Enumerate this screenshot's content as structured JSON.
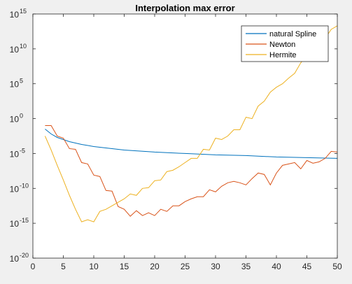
{
  "chart_data": {
    "type": "line",
    "title": "Interpolation max error",
    "xlabel": "",
    "ylabel": "",
    "xlim": [
      0,
      50
    ],
    "ylim_exponent": [
      -20,
      15
    ],
    "y_scale": "log",
    "grid": false,
    "legend_position": "top-right",
    "x_ticks": [
      "0",
      "5",
      "10",
      "15",
      "20",
      "25",
      "30",
      "35",
      "40",
      "45",
      "50"
    ],
    "y_ticks": [
      {
        "base": "10",
        "exp": "-20"
      },
      {
        "base": "10",
        "exp": "-15"
      },
      {
        "base": "10",
        "exp": "-10"
      },
      {
        "base": "10",
        "exp": "-5"
      },
      {
        "base": "10",
        "exp": "0"
      },
      {
        "base": "10",
        "exp": "5"
      },
      {
        "base": "10",
        "exp": "10"
      },
      {
        "base": "10",
        "exp": "15"
      }
    ],
    "series": [
      {
        "name": "natural Spline",
        "color": "#0072bd",
        "x": [
          2,
          3,
          4,
          5,
          6,
          7,
          8,
          10,
          12,
          15,
          20,
          25,
          30,
          35,
          40,
          45,
          50
        ],
        "log10_y": [
          -1.5,
          -2.2,
          -2.7,
          -3.0,
          -3.3,
          -3.5,
          -3.7,
          -4.0,
          -4.2,
          -4.5,
          -4.8,
          -5.0,
          -5.2,
          -5.3,
          -5.5,
          -5.6,
          -5.7
        ]
      },
      {
        "name": "Newton",
        "color": "#d95319",
        "x": [
          2,
          3,
          4,
          5,
          6,
          7,
          8,
          9,
          10,
          11,
          12,
          13,
          14,
          15,
          16,
          17,
          18,
          19,
          20,
          21,
          22,
          23,
          24,
          25,
          26,
          27,
          28,
          29,
          30,
          31,
          32,
          33,
          34,
          35,
          36,
          37,
          38,
          39,
          40,
          41,
          42,
          43,
          44,
          45,
          46,
          47,
          48,
          49,
          50
        ],
        "log10_y": [
          -1.0,
          -1.0,
          -2.5,
          -2.8,
          -4.3,
          -4.4,
          -6.3,
          -6.5,
          -8.1,
          -8.3,
          -10.3,
          -10.4,
          -12.6,
          -13.0,
          -14.0,
          -13.2,
          -13.9,
          -13.5,
          -13.9,
          -13.0,
          -13.3,
          -12.5,
          -12.5,
          -11.9,
          -11.5,
          -11.2,
          -11.2,
          -10.2,
          -10.5,
          -9.7,
          -9.2,
          -9.0,
          -9.2,
          -9.5,
          -8.6,
          -7.8,
          -8.0,
          -9.5,
          -7.8,
          -6.7,
          -6.5,
          -6.3,
          -7.2,
          -6.0,
          -6.4,
          -6.2,
          -5.7,
          -4.7,
          -4.8
        ]
      },
      {
        "name": "Hermite",
        "color": "#edb120",
        "x": [
          2,
          3,
          4,
          5,
          6,
          7,
          8,
          9,
          10,
          11,
          12,
          13,
          14,
          15,
          16,
          17,
          18,
          19,
          20,
          21,
          22,
          23,
          24,
          25,
          26,
          27,
          28,
          29,
          30,
          31,
          32,
          33,
          34,
          35,
          36,
          37,
          38,
          39,
          40,
          41,
          42,
          43,
          44,
          45,
          46,
          47,
          48,
          49,
          50
        ],
        "log10_y": [
          -2.5,
          -4.5,
          -6.7,
          -8.8,
          -11.0,
          -13.0,
          -14.8,
          -14.5,
          -14.8,
          -13.3,
          -13.0,
          -12.5,
          -12.0,
          -11.5,
          -10.8,
          -11.0,
          -10.0,
          -9.9,
          -8.9,
          -8.8,
          -7.6,
          -7.4,
          -6.9,
          -6.3,
          -5.7,
          -5.7,
          -4.4,
          -4.5,
          -2.8,
          -3.0,
          -2.5,
          -1.6,
          -1.6,
          0.2,
          0.0,
          1.8,
          2.5,
          3.8,
          4.5,
          5.0,
          5.8,
          6.5,
          8.0,
          9.0,
          9.4,
          10.5,
          11.5,
          12.8,
          13.3
        ]
      }
    ]
  }
}
